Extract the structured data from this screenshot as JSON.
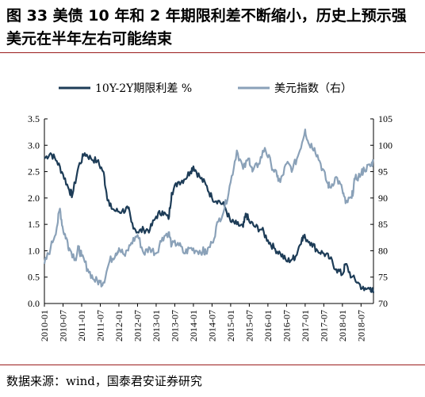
{
  "figure": {
    "title": "图 33  美债 10 年和 2 年期限利差不断缩小，历史上预示强美元在半年左右可能结束",
    "source": "数据来源：wind，国泰君安证券研究"
  },
  "colors": {
    "rule": "#9b1c1c",
    "series_spread": "#1d3c57",
    "series_dxy": "#8aa1b8"
  },
  "chart_data": {
    "type": "line",
    "title": "",
    "xlabel": "",
    "ylabel_left": "",
    "ylabel_right": "",
    "legend_position": "top",
    "grid": false,
    "x_range": [
      "2010-01",
      "2018-11"
    ],
    "x_ticks": [
      "2010-01",
      "2010-07",
      "2011-01",
      "2011-07",
      "2012-01",
      "2012-07",
      "2013-01",
      "2013-07",
      "2014-01",
      "2014-07",
      "2015-01",
      "2015-07",
      "2016-01",
      "2016-07",
      "2017-01",
      "2017-07",
      "2018-01",
      "2018-07"
    ],
    "y_left": {
      "range": [
        0,
        3.5
      ],
      "ticks": [
        "0.0",
        "0.5",
        "1.0",
        "1.5",
        "2.0",
        "2.5",
        "3.0",
        "3.5"
      ]
    },
    "y_right": {
      "range": [
        70,
        105
      ],
      "ticks": [
        "70",
        "75",
        "80",
        "85",
        "90",
        "95",
        "100",
        "105"
      ]
    },
    "series": [
      {
        "name": "10Y-2Y期限利差 %",
        "axis": "left",
        "points": [
          [
            "2010-01",
            2.75
          ],
          [
            "2010-03",
            2.85
          ],
          [
            "2010-05",
            2.7
          ],
          [
            "2010-07",
            2.45
          ],
          [
            "2010-09",
            2.15
          ],
          [
            "2010-10",
            2.05
          ],
          [
            "2010-12",
            2.6
          ],
          [
            "2011-02",
            2.85
          ],
          [
            "2011-04",
            2.75
          ],
          [
            "2011-06",
            2.7
          ],
          [
            "2011-08",
            2.5
          ],
          [
            "2011-09",
            2.1
          ],
          [
            "2011-10",
            1.85
          ],
          [
            "2011-12",
            1.75
          ],
          [
            "2012-02",
            1.75
          ],
          [
            "2012-04",
            1.8
          ],
          [
            "2012-05",
            1.55
          ],
          [
            "2012-07",
            1.35
          ],
          [
            "2012-09",
            1.4
          ],
          [
            "2012-11",
            1.4
          ],
          [
            "2013-01",
            1.65
          ],
          [
            "2013-03",
            1.75
          ],
          [
            "2013-05",
            1.6
          ],
          [
            "2013-06",
            2.1
          ],
          [
            "2013-08",
            2.3
          ],
          [
            "2013-10",
            2.35
          ],
          [
            "2013-12",
            2.5
          ],
          [
            "2014-01",
            2.6
          ],
          [
            "2014-03",
            2.4
          ],
          [
            "2014-05",
            2.25
          ],
          [
            "2014-07",
            2.0
          ],
          [
            "2014-09",
            1.95
          ],
          [
            "2014-11",
            1.85
          ],
          [
            "2015-01",
            1.55
          ],
          [
            "2015-03",
            1.5
          ],
          [
            "2015-05",
            1.45
          ],
          [
            "2015-06",
            1.7
          ],
          [
            "2015-07",
            1.55
          ],
          [
            "2015-09",
            1.45
          ],
          [
            "2015-11",
            1.4
          ],
          [
            "2016-01",
            1.2
          ],
          [
            "2016-03",
            1.05
          ],
          [
            "2016-05",
            0.95
          ],
          [
            "2016-07",
            0.8
          ],
          [
            "2016-09",
            0.85
          ],
          [
            "2016-10",
            0.9
          ],
          [
            "2016-12",
            1.25
          ],
          [
            "2017-01",
            1.25
          ],
          [
            "2017-03",
            1.15
          ],
          [
            "2017-05",
            1.0
          ],
          [
            "2017-07",
            0.95
          ],
          [
            "2017-09",
            0.85
          ],
          [
            "2017-11",
            0.65
          ],
          [
            "2018-01",
            0.55
          ],
          [
            "2018-02",
            0.75
          ],
          [
            "2018-04",
            0.5
          ],
          [
            "2018-06",
            0.4
          ],
          [
            "2018-08",
            0.25
          ],
          [
            "2018-10",
            0.3
          ],
          [
            "2018-11",
            0.2
          ]
        ]
      },
      {
        "name": "美元指数（右）",
        "axis": "right",
        "points": [
          [
            "2010-01",
            77.5
          ],
          [
            "2010-03",
            80.5
          ],
          [
            "2010-05",
            84.5
          ],
          [
            "2010-06",
            88.0
          ],
          [
            "2010-07",
            84.0
          ],
          [
            "2010-08",
            82.5
          ],
          [
            "2010-09",
            80.5
          ],
          [
            "2010-11",
            78.5
          ],
          [
            "2010-12",
            80.5
          ],
          [
            "2011-01",
            79.0
          ],
          [
            "2011-03",
            76.5
          ],
          [
            "2011-05",
            74.5
          ],
          [
            "2011-07",
            74.0
          ],
          [
            "2011-08",
            74.0
          ],
          [
            "2011-10",
            78.0
          ],
          [
            "2011-12",
            79.5
          ],
          [
            "2012-01",
            80.5
          ],
          [
            "2012-03",
            79.0
          ],
          [
            "2012-05",
            81.5
          ],
          [
            "2012-07",
            83.0
          ],
          [
            "2012-09",
            79.5
          ],
          [
            "2012-11",
            80.5
          ],
          [
            "2013-01",
            79.5
          ],
          [
            "2013-03",
            82.5
          ],
          [
            "2013-05",
            83.5
          ],
          [
            "2013-06",
            81.0
          ],
          [
            "2013-08",
            81.5
          ],
          [
            "2013-10",
            79.5
          ],
          [
            "2013-12",
            80.5
          ],
          [
            "2014-02",
            80.0
          ],
          [
            "2014-04",
            80.0
          ],
          [
            "2014-05",
            79.5
          ],
          [
            "2014-07",
            81.5
          ],
          [
            "2014-09",
            85.5
          ],
          [
            "2014-11",
            88.0
          ],
          [
            "2015-01",
            93.0
          ],
          [
            "2015-03",
            99.0
          ],
          [
            "2015-05",
            95.5
          ],
          [
            "2015-07",
            97.5
          ],
          [
            "2015-08",
            95.0
          ],
          [
            "2015-10",
            96.5
          ],
          [
            "2015-12",
            99.5
          ],
          [
            "2016-02",
            96.5
          ],
          [
            "2016-04",
            94.0
          ],
          [
            "2016-05",
            93.0
          ],
          [
            "2016-07",
            96.5
          ],
          [
            "2016-09",
            95.5
          ],
          [
            "2016-11",
            98.5
          ],
          [
            "2017-01",
            103.0
          ],
          [
            "2017-02",
            100.5
          ],
          [
            "2017-04",
            99.5
          ],
          [
            "2017-06",
            96.5
          ],
          [
            "2017-08",
            93.0
          ],
          [
            "2017-09",
            92.0
          ],
          [
            "2017-11",
            94.0
          ],
          [
            "2018-01",
            91.5
          ],
          [
            "2018-02",
            89.0
          ],
          [
            "2018-04",
            90.0
          ],
          [
            "2018-05",
            93.5
          ],
          [
            "2018-07",
            94.5
          ],
          [
            "2018-08",
            95.5
          ],
          [
            "2018-10",
            96.0
          ],
          [
            "2018-11",
            97.0
          ]
        ]
      }
    ]
  }
}
